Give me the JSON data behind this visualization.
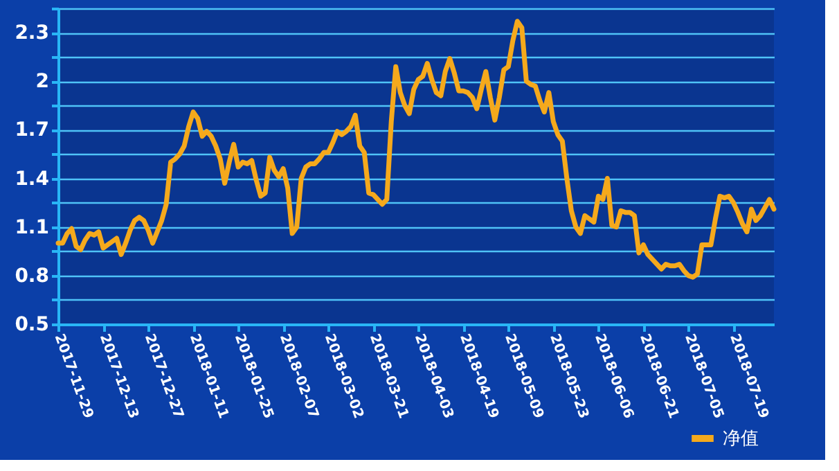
{
  "chart_data": {
    "type": "line",
    "categories": [
      "2017-11-29",
      null,
      null,
      null,
      null,
      null,
      null,
      null,
      null,
      null,
      "2017-12-13",
      null,
      null,
      null,
      null,
      null,
      null,
      null,
      null,
      null,
      "2017-12-27",
      null,
      null,
      null,
      null,
      null,
      null,
      null,
      null,
      null,
      "2018-01-11",
      null,
      null,
      null,
      null,
      null,
      null,
      null,
      null,
      null,
      "2018-01-25",
      null,
      null,
      null,
      null,
      null,
      null,
      null,
      null,
      null,
      "2018-02-07",
      null,
      null,
      null,
      null,
      null,
      null,
      null,
      null,
      null,
      "2018-03-02",
      null,
      null,
      null,
      null,
      null,
      null,
      null,
      null,
      null,
      "2018-03-21",
      null,
      null,
      null,
      null,
      null,
      null,
      null,
      null,
      null,
      "2018-04-03",
      null,
      null,
      null,
      null,
      null,
      null,
      null,
      null,
      null,
      "2018-04-19",
      null,
      null,
      null,
      null,
      null,
      null,
      null,
      null,
      null,
      "2018-05-09",
      null,
      null,
      null,
      null,
      null,
      null,
      null,
      null,
      null,
      "2018-05-23",
      null,
      null,
      null,
      null,
      null,
      null,
      null,
      null,
      null,
      "2018-06-06",
      null,
      null,
      null,
      null,
      null,
      null,
      null,
      null,
      null,
      "2018-06-21",
      null,
      null,
      null,
      null,
      null,
      null,
      null,
      null,
      null,
      "2018-07-05",
      null,
      null,
      null,
      null,
      null,
      null,
      null,
      null,
      null,
      "2018-07-19",
      null,
      null,
      null,
      null,
      null,
      null,
      null,
      null,
      null
    ],
    "series": [
      {
        "name": "净值",
        "color": "#f5a91c",
        "values": [
          1.0,
          1.0,
          1.06,
          1.09,
          0.98,
          0.96,
          1.02,
          1.06,
          1.05,
          1.07,
          0.97,
          0.99,
          1.01,
          1.03,
          0.93,
          1.0,
          1.08,
          1.14,
          1.16,
          1.14,
          1.08,
          1.0,
          1.07,
          1.14,
          1.24,
          1.5,
          1.52,
          1.55,
          1.6,
          1.72,
          1.81,
          1.77,
          1.66,
          1.69,
          1.66,
          1.6,
          1.52,
          1.37,
          1.5,
          1.61,
          1.47,
          1.5,
          1.49,
          1.51,
          1.39,
          1.29,
          1.31,
          1.53,
          1.45,
          1.41,
          1.46,
          1.34,
          1.06,
          1.1,
          1.4,
          1.47,
          1.49,
          1.49,
          1.52,
          1.56,
          1.56,
          1.62,
          1.69,
          1.67,
          1.69,
          1.72,
          1.79,
          1.6,
          1.56,
          1.31,
          1.3,
          1.27,
          1.24,
          1.27,
          1.75,
          2.09,
          1.93,
          1.85,
          1.8,
          1.95,
          2.01,
          2.03,
          2.11,
          2.01,
          1.93,
          1.91,
          2.06,
          2.14,
          2.05,
          1.94,
          1.94,
          1.93,
          1.9,
          1.83,
          1.95,
          2.06,
          1.9,
          1.76,
          1.9,
          2.07,
          2.09,
          2.25,
          2.37,
          2.33,
          2.0,
          1.98,
          1.97,
          1.88,
          1.81,
          1.93,
          1.75,
          1.67,
          1.63,
          1.4,
          1.2,
          1.1,
          1.06,
          1.17,
          1.15,
          1.13,
          1.29,
          1.27,
          1.4,
          1.11,
          1.1,
          1.2,
          1.19,
          1.19,
          1.17,
          0.94,
          0.99,
          0.93,
          0.9,
          0.87,
          0.84,
          0.87,
          0.86,
          0.86,
          0.87,
          0.83,
          0.8,
          0.79,
          0.81,
          0.99,
          0.99,
          0.99,
          1.15,
          1.29,
          1.28,
          1.29,
          1.25,
          1.19,
          1.12,
          1.07,
          1.21,
          1.14,
          1.17,
          1.22,
          1.27,
          1.21
        ]
      }
    ],
    "ylim": [
      0.5,
      2.45
    ],
    "yticks": [
      0.5,
      {
        "value": 0.65,
        "label": null
      },
      0.8,
      {
        "value": 0.95,
        "label": null
      },
      1.1,
      {
        "value": 1.25,
        "label": null
      },
      1.4,
      {
        "value": 1.55,
        "label": null
      },
      1.7,
      {
        "value": 1.85,
        "label": null
      },
      2,
      {
        "value": 2.15,
        "label": null
      },
      2.3,
      {
        "value": 2.45,
        "label": null
      }
    ],
    "grid": "y",
    "legend": "bottom right"
  }
}
